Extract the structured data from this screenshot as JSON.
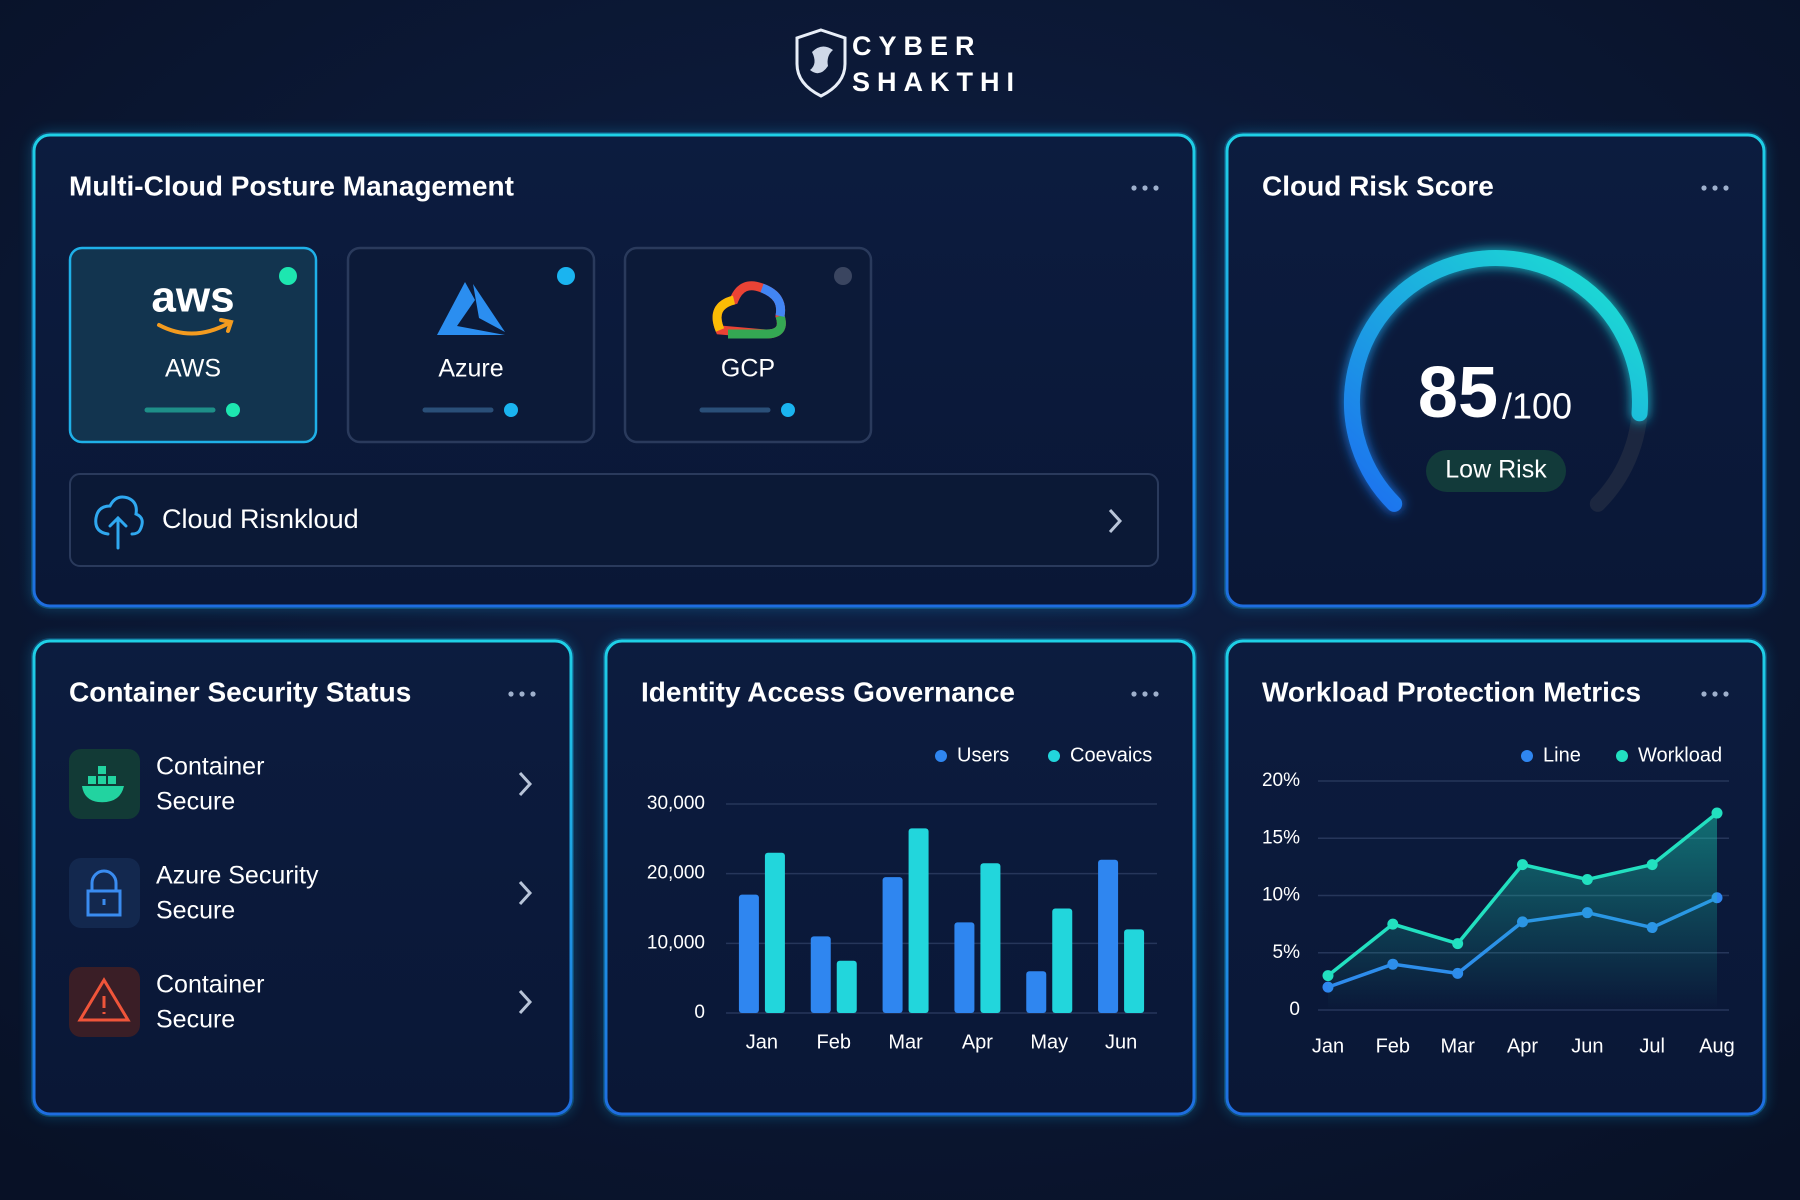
{
  "header": {
    "brand": [
      "CYBER",
      "SHAKTHI"
    ]
  },
  "posture": {
    "title": "Multi-Cloud Posture Management",
    "providers": [
      {
        "logo_text": "aws",
        "name": "AWS"
      },
      {
        "name": "Azure"
      },
      {
        "name": "GCP"
      }
    ],
    "search": "Cloud Risnkloud"
  },
  "risk": {
    "title": "Cloud Risk Score",
    "score": 85,
    "score_max": {
      "value": 100,
      "label": "/100"
    },
    "badge": "Low Risk"
  },
  "containers": {
    "title": "Container Security Status",
    "items": [
      {
        "name": "Container",
        "status": "Secure"
      },
      {
        "name": "Azure Security",
        "status": "Secure"
      },
      {
        "name": "Container",
        "status": "Secure"
      }
    ]
  },
  "chart_data": [
    {
      "type": "bar",
      "title": "Identity Access Governance",
      "categories": [
        "Jan",
        "Feb",
        "Mar",
        "Apr",
        "May",
        "Jun"
      ],
      "series": [
        {
          "name": "Users",
          "color": "#2f86f0",
          "values": [
            17000,
            11000,
            19500,
            13000,
            6000,
            22000
          ]
        },
        {
          "name": "Coevaics",
          "color": "#22d6dc",
          "values": [
            23000,
            7500,
            26500,
            21500,
            15000,
            12000
          ]
        }
      ],
      "ylim": [
        0,
        30000
      ],
      "yticks": [
        0,
        {
          "value": 10000,
          "label": "10,000"
        },
        {
          "value": 20000,
          "label": "20,000"
        },
        {
          "value": 30000,
          "label": "30,000"
        }
      ],
      "grid": true
    },
    {
      "type": "line",
      "title": "Workload Protection Metrics",
      "categories": [
        "Jan",
        "Feb",
        "Mar",
        "Apr",
        "Jun",
        "Jul",
        "Aug"
      ],
      "series": [
        {
          "name": "Line",
          "color": "#2f86f0",
          "values": [
            2,
            4,
            3.2,
            7.7,
            8.5,
            7.2,
            9.8
          ]
        },
        {
          "name": "Workload",
          "color": "#22e0c0",
          "values": [
            3,
            7.5,
            5.8,
            12.7,
            11.4,
            12.7,
            17.2
          ]
        }
      ],
      "ylim": [
        0,
        20
      ],
      "yticks": [
        0,
        {
          "value": 5,
          "label": "5%"
        },
        {
          "value": 10,
          "label": "10%"
        },
        {
          "value": 15,
          "label": "15%"
        },
        {
          "value": 20,
          "label": "20%"
        }
      ],
      "grid": true
    }
  ]
}
